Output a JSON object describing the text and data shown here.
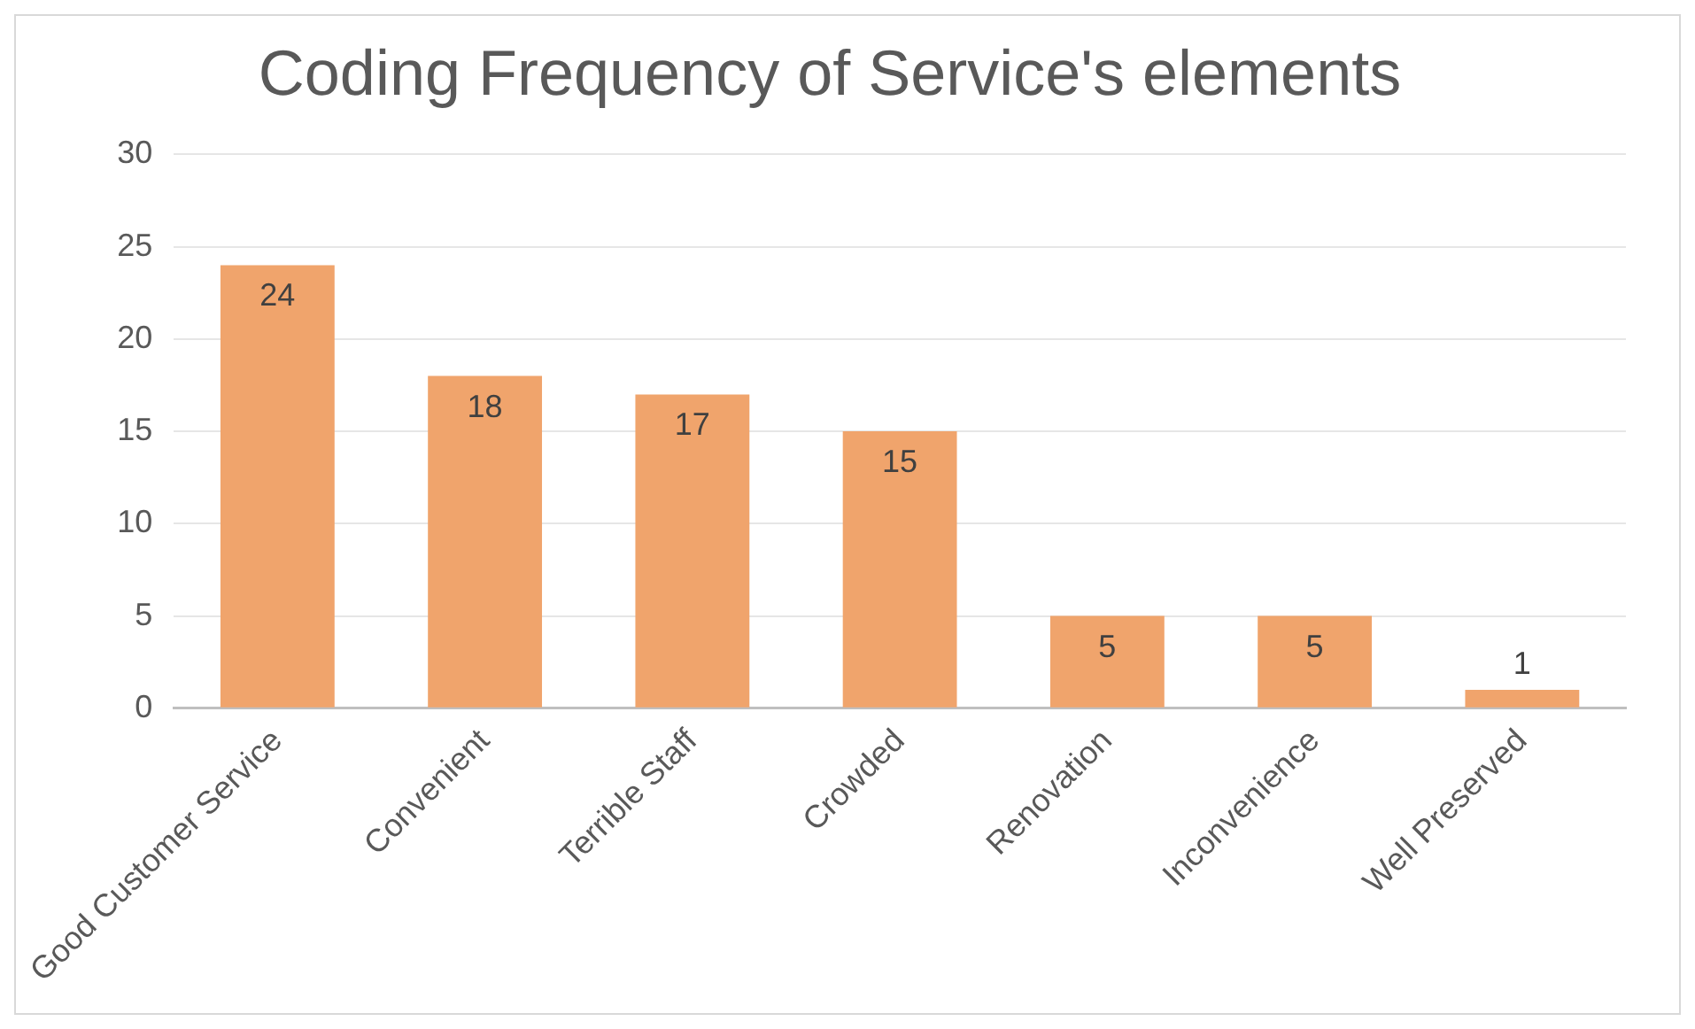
{
  "chart_data": {
    "type": "bar",
    "title": "Coding Frequency of Service's elements",
    "categories": [
      "Good Customer Service",
      "Convenient",
      "Terrible Staff",
      "Crowded",
      "Renovation",
      "Inconvenience",
      "Well Preserved"
    ],
    "values": [
      24,
      18,
      17,
      15,
      5,
      5,
      1
    ],
    "color": "#f0a46c",
    "ylim": [
      0,
      30
    ],
    "yticks": [
      0,
      5,
      10,
      15,
      20,
      25,
      30
    ],
    "grid": "y",
    "data_labels": true,
    "legend": false
  }
}
